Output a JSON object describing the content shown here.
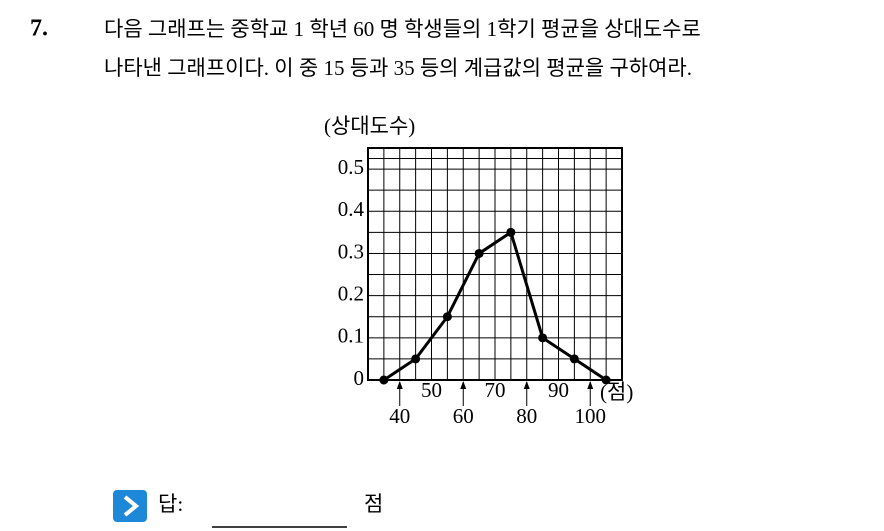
{
  "problem": {
    "number": "7.",
    "lines": [
      "다음 그래프는 중학교 1 학년 60 명 학생들의 1학기 평균을 상대도수로",
      "나타낸 그래프이다. 이 중 15 등과 35 등의 계급값의 평균을 구하여라."
    ]
  },
  "chart_data": {
    "type": "line",
    "y_label": "(상대도수)",
    "x_label": "(점)",
    "x": [
      35,
      45,
      55,
      65,
      75,
      85,
      95,
      105
    ],
    "values": [
      0,
      0.05,
      0.15,
      0.3,
      0.35,
      0.1,
      0.05,
      0
    ],
    "color": "#000000",
    "xlim": [
      30,
      110
    ],
    "xticks": [
      40,
      50,
      60,
      70,
      80,
      90,
      100
    ],
    "ylim": [
      0,
      0.55
    ],
    "yticks": [
      0,
      0.1,
      0.2,
      0.3,
      0.4,
      0.5
    ],
    "grid": true
  },
  "answer": {
    "label": "답:",
    "unit": "점"
  }
}
